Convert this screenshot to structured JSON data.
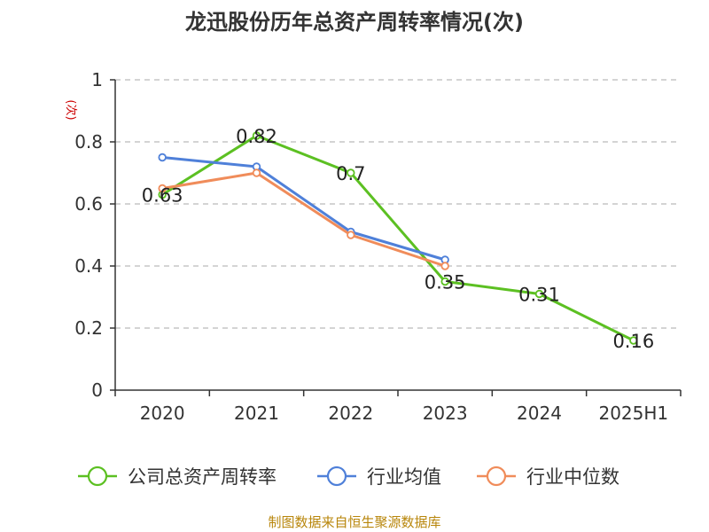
{
  "chart_data": {
    "type": "line",
    "title": "龙迅股份历年总资产周转率情况(次)",
    "ylabel": "(次)",
    "xlabel": "",
    "categories": [
      "2020",
      "2021",
      "2022",
      "2023",
      "2024",
      "2025H1"
    ],
    "ylim": [
      0,
      1
    ],
    "yticks": [
      0,
      0.2,
      0.4,
      0.6,
      0.8,
      1
    ],
    "ytick_labels": [
      "0",
      "0.2",
      "0.4",
      "0.6",
      "0.8",
      "1"
    ],
    "grid": true,
    "legend_position": "bottom",
    "series": [
      {
        "name": "公司总资产周转率",
        "color": "#5cc022",
        "values": [
          0.63,
          0.82,
          0.7,
          0.35,
          0.31,
          0.16
        ],
        "labels": [
          "0.63",
          "0.82",
          "0.7",
          "0.35",
          "0.31",
          "0.16"
        ]
      },
      {
        "name": "行业均值",
        "color": "#4f80d9",
        "values": [
          0.75,
          0.72,
          0.51,
          0.42,
          null,
          null
        ]
      },
      {
        "name": "行业中位数",
        "color": "#f08c5a",
        "values": [
          0.65,
          0.7,
          0.5,
          0.4,
          null,
          null
        ]
      }
    ],
    "source": "制图数据来自恒生聚源数据库"
  }
}
